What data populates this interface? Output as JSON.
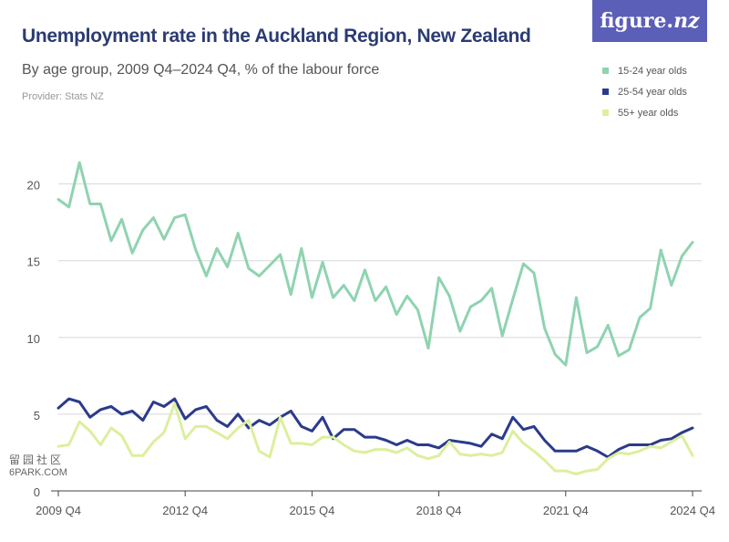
{
  "header": {
    "title": "Unemployment rate in the Auckland Region, New Zealand",
    "subtitle": "By age group, 2009 Q4–2024 Q4, % of the labour force",
    "provider": "Provider: Stats NZ"
  },
  "logo": {
    "text_main": "figure.",
    "text_nz": "nz",
    "background": "#5b5fb7"
  },
  "watermark": {
    "top": "留园社区",
    "bottom": "6PARK.COM"
  },
  "chart_data": {
    "type": "line",
    "xlabel": "",
    "ylabel": "",
    "ylim": [
      0,
      22
    ],
    "y_ticks": [
      0,
      5,
      10,
      15,
      20
    ],
    "y_tick_labels": [
      "0",
      "5",
      "10",
      "15",
      "20"
    ],
    "x_tick_index": [
      0,
      12,
      24,
      36,
      48,
      60
    ],
    "x_tick_labels": [
      "2009 Q4",
      "2012 Q4",
      "2015 Q4",
      "2018 Q4",
      "2021 Q4",
      "2024 Q4"
    ],
    "grid": "horizontal",
    "legend_position": "top-right",
    "x": [
      "2009 Q4",
      "2010 Q1",
      "2010 Q2",
      "2010 Q3",
      "2010 Q4",
      "2011 Q1",
      "2011 Q2",
      "2011 Q3",
      "2011 Q4",
      "2012 Q1",
      "2012 Q2",
      "2012 Q3",
      "2012 Q4",
      "2013 Q1",
      "2013 Q2",
      "2013 Q3",
      "2013 Q4",
      "2014 Q1",
      "2014 Q2",
      "2014 Q3",
      "2014 Q4",
      "2015 Q1",
      "2015 Q2",
      "2015 Q3",
      "2015 Q4",
      "2016 Q1",
      "2016 Q2",
      "2016 Q3",
      "2016 Q4",
      "2017 Q1",
      "2017 Q2",
      "2017 Q3",
      "2017 Q4",
      "2018 Q1",
      "2018 Q2",
      "2018 Q3",
      "2018 Q4",
      "2019 Q1",
      "2019 Q2",
      "2019 Q3",
      "2019 Q4",
      "2020 Q1",
      "2020 Q2",
      "2020 Q3",
      "2020 Q4",
      "2021 Q1",
      "2021 Q2",
      "2021 Q3",
      "2021 Q4",
      "2022 Q1",
      "2022 Q2",
      "2022 Q3",
      "2022 Q4",
      "2023 Q1",
      "2023 Q2",
      "2023 Q3",
      "2023 Q4",
      "2024 Q1",
      "2024 Q2",
      "2024 Q3",
      "2024 Q4"
    ],
    "series": [
      {
        "name": "15-24 year olds",
        "color": "#8fd3b0",
        "values": [
          19.0,
          18.5,
          21.4,
          18.7,
          18.7,
          16.3,
          17.7,
          15.5,
          17.0,
          17.8,
          16.4,
          17.8,
          18.0,
          15.7,
          14.0,
          15.8,
          14.6,
          16.8,
          14.5,
          14.0,
          14.7,
          15.4,
          12.8,
          15.8,
          12.6,
          14.9,
          12.6,
          13.4,
          12.4,
          14.4,
          12.4,
          13.3,
          11.5,
          12.7,
          11.8,
          9.3,
          13.9,
          12.7,
          10.4,
          12.0,
          12.4,
          13.2,
          10.1,
          12.5,
          14.8,
          14.2,
          10.6,
          8.9,
          8.2,
          12.6,
          9.0,
          9.4,
          10.8,
          8.8,
          9.2,
          11.3,
          11.9,
          15.7,
          13.4,
          15.3,
          16.2
        ]
      },
      {
        "name": "25-54 year olds",
        "color": "#2b3b8a",
        "values": [
          5.4,
          6.0,
          5.8,
          4.8,
          5.3,
          5.5,
          5.0,
          5.2,
          4.6,
          5.8,
          5.5,
          6.0,
          4.7,
          5.3,
          5.5,
          4.6,
          4.2,
          5.0,
          4.1,
          4.6,
          4.3,
          4.8,
          5.2,
          4.2,
          3.9,
          4.8,
          3.4,
          4.0,
          4.0,
          3.5,
          3.5,
          3.3,
          3.0,
          3.3,
          3.0,
          3.0,
          2.8,
          3.3,
          3.2,
          3.1,
          2.9,
          3.7,
          3.4,
          4.8,
          4.0,
          4.2,
          3.3,
          2.6,
          2.6,
          2.6,
          2.9,
          2.6,
          2.2,
          2.7,
          3.0,
          3.0,
          3.0,
          3.3,
          3.4,
          3.8,
          4.1
        ]
      },
      {
        "name": "55+ year olds",
        "color": "#dcef9d",
        "values": [
          2.9,
          3.0,
          4.5,
          3.9,
          3.0,
          4.1,
          3.6,
          2.3,
          2.3,
          3.2,
          3.8,
          5.7,
          3.4,
          4.2,
          4.2,
          3.8,
          3.4,
          4.1,
          4.6,
          2.6,
          2.2,
          4.8,
          3.1,
          3.1,
          3.0,
          3.5,
          3.5,
          3.0,
          2.6,
          2.5,
          2.7,
          2.7,
          2.5,
          2.8,
          2.3,
          2.1,
          2.3,
          3.2,
          2.4,
          2.3,
          2.4,
          2.3,
          2.5,
          3.9,
          3.1,
          2.6,
          2.0,
          1.3,
          1.3,
          1.1,
          1.3,
          1.4,
          2.1,
          2.5,
          2.4,
          2.6,
          2.9,
          2.8,
          3.2,
          3.6,
          2.3
        ]
      }
    ]
  }
}
